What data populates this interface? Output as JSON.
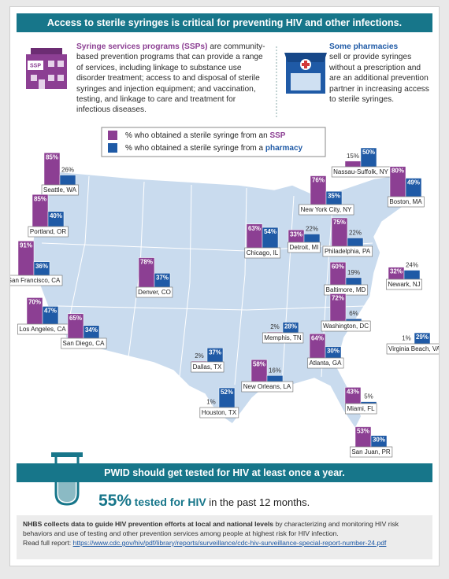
{
  "header": {
    "title": "Access to sterile syringes is critical for preventing HIV and other infections."
  },
  "info": {
    "ssp_icon_label": "SSP",
    "ssp_lead": "Syringe services programs (SSPs)",
    "ssp_body": "are community-based prevention programs that can provide a range of services, including linkage to substance use disorder treatment; access to and disposal of sterile syringes and injection equipment; and vaccination, testing, and linkage to care and treatment for infectious diseases.",
    "pharmacy_lead": "Some pharmacies",
    "pharmacy_body": "sell or provide syringes without a prescription and are an additional prevention partner in increasing access to sterile syringes."
  },
  "chart_data": {
    "type": "bar",
    "categories": [
      "Seattle, WA",
      "Portland, OR",
      "San Francisco, CA",
      "Los Angeles, CA",
      "San Diego, CA",
      "Denver, CO",
      "Dallas, TX",
      "Houston, TX",
      "Chicago, IL",
      "Memphis, TN",
      "New Orleans, LA",
      "Detroit, MI",
      "Atlanta, GA",
      "Nassau-Suffolk, NY",
      "New York City, NY",
      "Boston, MA",
      "Philadelphia, PA",
      "Baltimore, MD",
      "Newark, NJ",
      "Washington, DC",
      "Virginia Beach, VA",
      "Miami, FL",
      "San Juan, PR"
    ],
    "series": [
      {
        "name": "% who obtained a sterile syringe from an SSP",
        "color": "#8c3f93",
        "values": [
          85,
          85,
          91,
          70,
          65,
          78,
          2,
          1,
          63,
          2,
          58,
          33,
          64,
          15,
          76,
          80,
          75,
          60,
          32,
          72,
          1,
          43,
          53
        ],
        "value_labels": [
          "85%",
          "85%",
          "91%",
          "70%",
          "65%",
          "78%",
          "2%",
          "1%",
          "63%",
          "2%",
          "58%",
          "33%",
          "64%",
          "15%",
          "76%",
          "80%",
          "75%",
          "60%",
          "32%",
          "72%",
          "1%",
          "43%",
          "53%"
        ]
      },
      {
        "name": "% who obtained a sterile syringe from a pharmacy",
        "color": "#1f5aa6",
        "values": [
          26,
          40,
          36,
          47,
          34,
          37,
          37,
          52,
          54,
          28,
          16,
          22,
          30,
          50,
          35,
          49,
          22,
          19,
          24,
          6,
          29,
          5,
          30
        ],
        "value_labels": [
          "26%",
          "40%",
          "36%",
          "47%",
          "34%",
          "37%",
          "37%",
          "52%",
          "54%",
          "28%",
          "16%",
          "22%",
          "30%",
          "50%",
          "35%",
          "49%",
          "22%",
          "19%",
          "24%",
          "6%",
          "29%",
          "5%",
          "30%"
        ]
      }
    ]
  },
  "testing": {
    "banner": "PWID should get tested for HIV at least once a year.",
    "stat": "55%",
    "emphasis": "tested for HIV",
    "rest": "in the past 12 months."
  },
  "footer": {
    "lead": "NHBS collects data to guide HIV prevention efforts at local and national levels",
    "body": "by characterizing and monitoring HIV risk behaviors and use of testing and other prevention services among people at highest risk for HIV infection.",
    "report_label": "Read full report:",
    "report_url": "https://www.cdc.gov/hiv/pdf/library/reports/surveillance/cdc-hiv-surveillance-special-report-number-24.pdf"
  }
}
